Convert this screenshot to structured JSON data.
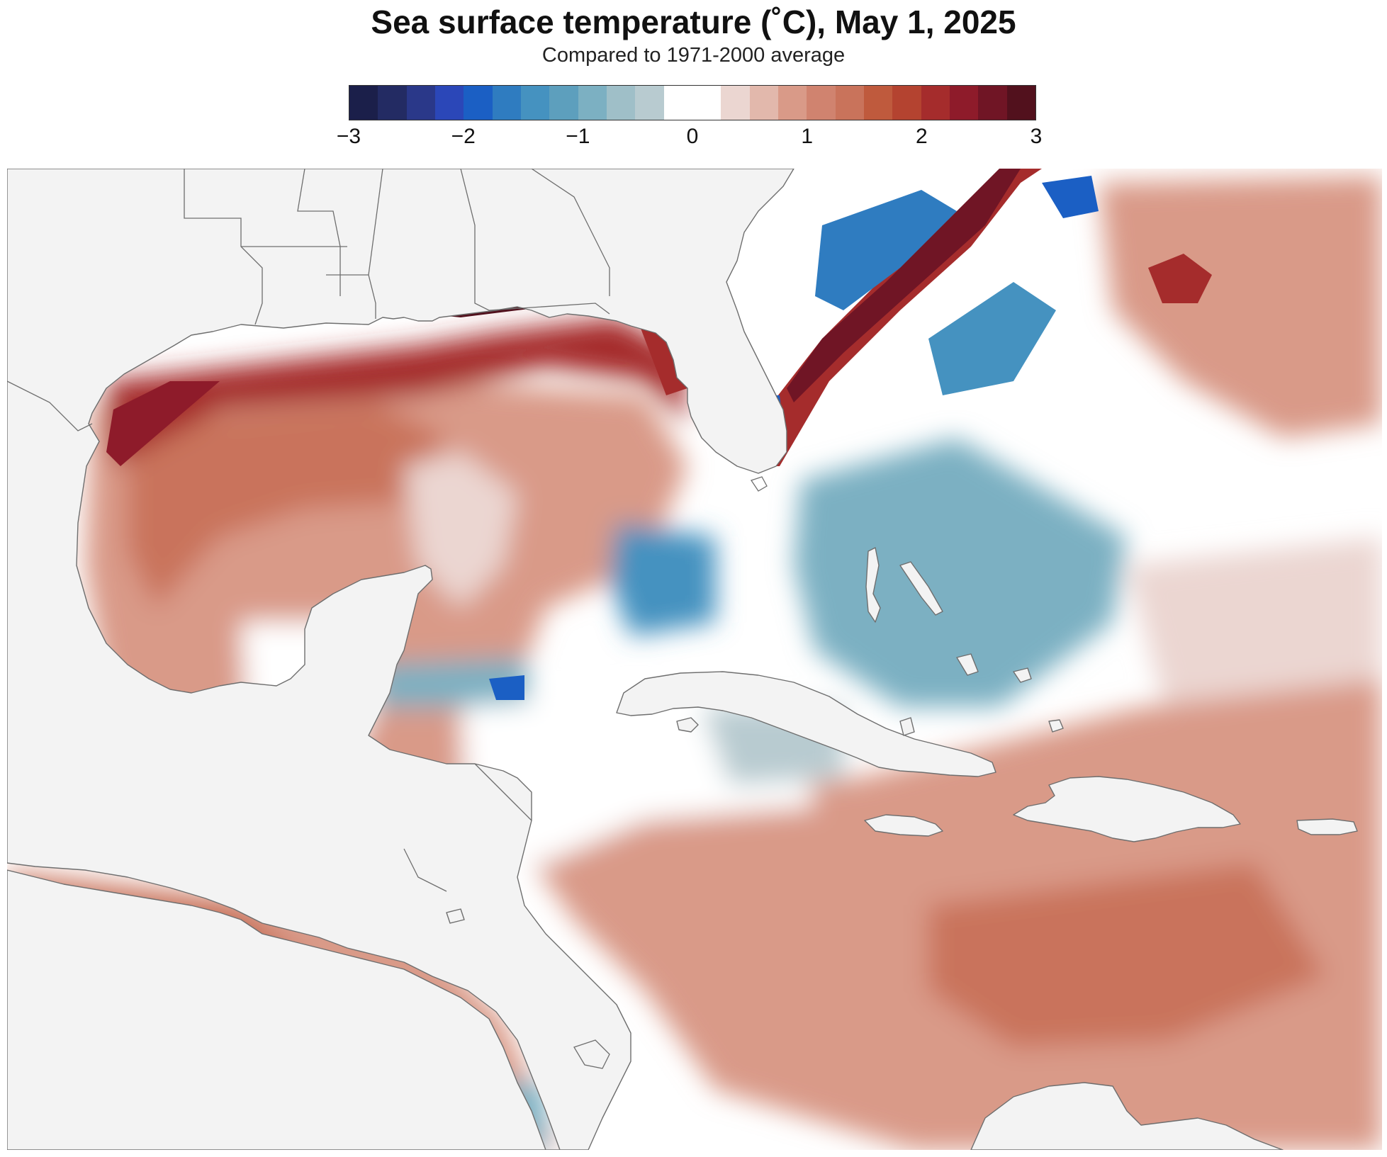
{
  "title": "Sea surface temperature (˚C), May 1, 2025",
  "subtitle": "Compared to 1971-2000 average",
  "legend": {
    "ticks": [
      "−3",
      "−2",
      "−1",
      "0",
      "1",
      "2",
      "3"
    ],
    "tick_values": [
      -3,
      -2,
      -1,
      0,
      1,
      2,
      3
    ],
    "colors": [
      "#1b1f4a",
      "#232b63",
      "#2a3889",
      "#2b47b8",
      "#1b5fc4",
      "#2f7cc0",
      "#4592c0",
      "#5d9fbd",
      "#7cb0c2",
      "#9fbfc8",
      "#b8cbd0",
      "#ffffff",
      "#ffffff",
      "#ebd6d1",
      "#e2b8ac",
      "#d99a88",
      "#d0836f",
      "#c9735b",
      "#bf5a3d",
      "#b44330",
      "#a52c2c",
      "#8e1b2a",
      "#701525",
      "#52111d"
    ]
  },
  "map": {
    "land_color": "#f3f3f3",
    "border_color": "#6e6e6e",
    "ocean_neutral": "#ffffff",
    "anomaly_colors": {
      "strong_warm": "#52111d",
      "warm_3": "#a52c2c",
      "warm_2": "#c9735b",
      "warm_1": "#d99a88",
      "warm_0": "#ebd6d1",
      "cool_1": "#b8cbd0",
      "cool_2": "#7cb0c2",
      "cool_3": "#4592c0",
      "cool_4": "#1b5fc4",
      "cool_5": "#2a3889"
    }
  }
}
